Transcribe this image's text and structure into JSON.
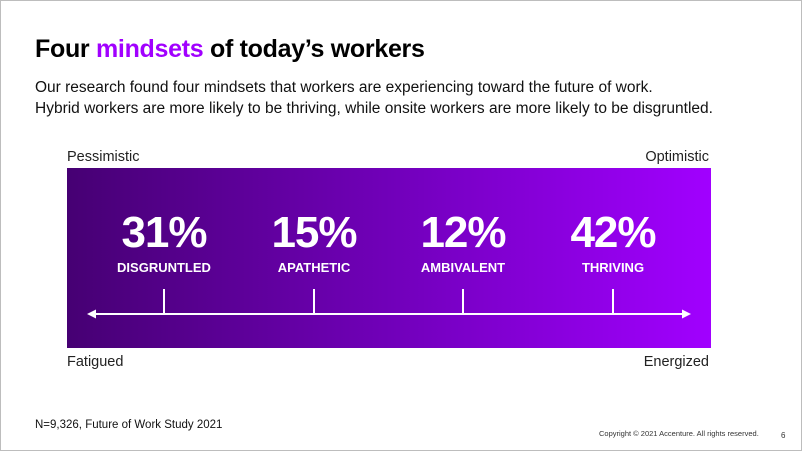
{
  "slide": {
    "title_pre": "Four ",
    "title_accent": "mindsets",
    "title_post": " of today’s workers",
    "subtitle_line1": "Our research found four mindsets that workers are experiencing toward the future of work.",
    "subtitle_line2": "Hybrid workers are more likely to be thriving, while onsite workers are more likely to be disgruntled.",
    "scale": {
      "top_left": "Pessimistic",
      "top_right": "Optimistic",
      "bottom_left": "Fatigued",
      "bottom_right": "Energized"
    },
    "mindsets": [
      {
        "percent": "31%",
        "label": "DISGRUNTLED"
      },
      {
        "percent": "15%",
        "label": "APATHETIC"
      },
      {
        "percent": "12%",
        "label": "AMBIVALENT"
      },
      {
        "percent": "42%",
        "label": "THRIVING"
      }
    ],
    "footnote": "N=9,326, Future of Work Study 2021",
    "copyright": "Copyright © 2021 Accenture. All rights reserved.",
    "page_number": "6"
  },
  "colors": {
    "accent": "#a100ff",
    "gradient_start": "#460073",
    "gradient_mid": "#7500c0",
    "gradient_end": "#a100ff"
  }
}
